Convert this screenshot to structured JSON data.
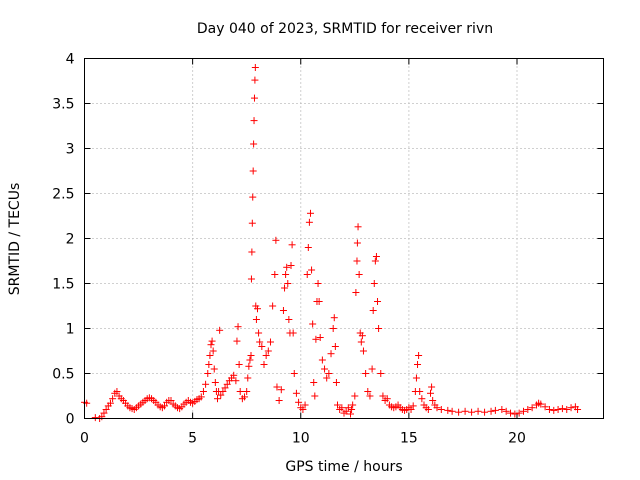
{
  "chart_data": {
    "type": "scatter",
    "title": "Day 040 of 2023, SRMTID for receiver rivn",
    "xlabel": "GPS time / hours",
    "ylabel": "SRMTID / TECUs",
    "xlim": [
      0,
      24
    ],
    "ylim": [
      0,
      4
    ],
    "x_ticks": [
      0,
      5,
      10,
      15,
      20
    ],
    "x_tick_labels": [
      "0",
      "5",
      "10",
      "15",
      "20"
    ],
    "y_ticks": [
      0,
      0.5,
      1,
      1.5,
      2,
      2.5,
      3,
      3.5,
      4
    ],
    "y_tick_labels": [
      "0",
      "0.5",
      "1",
      "1.5",
      "2",
      "2.5",
      "3",
      "3.5",
      "4"
    ],
    "grid": true,
    "marker": "+",
    "series": [
      {
        "name": "SRMTID",
        "color": "#ff0000",
        "points": [
          [
            0.0,
            0.18
          ],
          [
            0.1,
            0.17
          ],
          [
            0.5,
            0.01
          ],
          [
            0.7,
            0.0
          ],
          [
            0.8,
            0.02
          ],
          [
            0.9,
            0.06
          ],
          [
            1.0,
            0.1
          ],
          [
            1.1,
            0.14
          ],
          [
            1.2,
            0.17
          ],
          [
            1.3,
            0.22
          ],
          [
            1.4,
            0.28
          ],
          [
            1.5,
            0.3
          ],
          [
            1.6,
            0.25
          ],
          [
            1.7,
            0.22
          ],
          [
            1.8,
            0.2
          ],
          [
            1.9,
            0.17
          ],
          [
            2.0,
            0.14
          ],
          [
            2.1,
            0.12
          ],
          [
            2.2,
            0.11
          ],
          [
            2.3,
            0.1
          ],
          [
            2.4,
            0.12
          ],
          [
            2.5,
            0.14
          ],
          [
            2.6,
            0.16
          ],
          [
            2.7,
            0.18
          ],
          [
            2.8,
            0.2
          ],
          [
            2.9,
            0.22
          ],
          [
            3.0,
            0.23
          ],
          [
            3.1,
            0.22
          ],
          [
            3.2,
            0.2
          ],
          [
            3.3,
            0.18
          ],
          [
            3.4,
            0.15
          ],
          [
            3.5,
            0.13
          ],
          [
            3.6,
            0.12
          ],
          [
            3.7,
            0.14
          ],
          [
            3.8,
            0.18
          ],
          [
            3.9,
            0.2
          ],
          [
            4.0,
            0.2
          ],
          [
            4.1,
            0.16
          ],
          [
            4.2,
            0.14
          ],
          [
            4.3,
            0.12
          ],
          [
            4.4,
            0.11
          ],
          [
            4.5,
            0.13
          ],
          [
            4.6,
            0.16
          ],
          [
            4.7,
            0.18
          ],
          [
            4.8,
            0.2
          ],
          [
            4.9,
            0.18
          ],
          [
            5.0,
            0.17
          ],
          [
            5.1,
            0.19
          ],
          [
            5.2,
            0.21
          ],
          [
            5.3,
            0.22
          ],
          [
            5.4,
            0.24
          ],
          [
            5.5,
            0.3
          ],
          [
            5.6,
            0.38
          ],
          [
            5.7,
            0.5
          ],
          [
            5.75,
            0.6
          ],
          [
            5.8,
            0.7
          ],
          [
            5.85,
            0.82
          ],
          [
            5.9,
            0.86
          ],
          [
            5.95,
            0.75
          ],
          [
            6.0,
            0.55
          ],
          [
            6.05,
            0.4
          ],
          [
            6.1,
            0.3
          ],
          [
            6.15,
            0.22
          ],
          [
            6.2,
            0.3
          ],
          [
            6.25,
            0.98
          ],
          [
            6.3,
            0.26
          ],
          [
            6.4,
            0.3
          ],
          [
            6.5,
            0.34
          ],
          [
            6.6,
            0.38
          ],
          [
            6.7,
            0.42
          ],
          [
            6.8,
            0.45
          ],
          [
            6.9,
            0.48
          ],
          [
            7.0,
            0.42
          ],
          [
            7.05,
            0.86
          ],
          [
            7.1,
            1.02
          ],
          [
            7.15,
            0.6
          ],
          [
            7.2,
            0.3
          ],
          [
            7.3,
            0.22
          ],
          [
            7.4,
            0.24
          ],
          [
            7.5,
            0.3
          ],
          [
            7.55,
            0.45
          ],
          [
            7.6,
            0.58
          ],
          [
            7.65,
            0.65
          ],
          [
            7.7,
            0.7
          ],
          [
            7.72,
            1.55
          ],
          [
            7.74,
            1.85
          ],
          [
            7.76,
            2.17
          ],
          [
            7.78,
            2.46
          ],
          [
            7.8,
            2.75
          ],
          [
            7.82,
            3.05
          ],
          [
            7.84,
            3.31
          ],
          [
            7.86,
            3.56
          ],
          [
            7.88,
            3.76
          ],
          [
            7.9,
            3.9
          ],
          [
            7.92,
            1.25
          ],
          [
            7.95,
            1.1
          ],
          [
            8.0,
            1.22
          ],
          [
            8.05,
            0.95
          ],
          [
            8.1,
            0.85
          ],
          [
            8.2,
            0.8
          ],
          [
            8.3,
            0.6
          ],
          [
            8.4,
            0.7
          ],
          [
            8.5,
            0.75
          ],
          [
            8.6,
            0.85
          ],
          [
            8.7,
            1.25
          ],
          [
            8.8,
            1.6
          ],
          [
            8.85,
            1.98
          ],
          [
            8.9,
            0.35
          ],
          [
            9.0,
            0.2
          ],
          [
            9.1,
            0.32
          ],
          [
            9.2,
            1.2
          ],
          [
            9.25,
            1.45
          ],
          [
            9.3,
            1.6
          ],
          [
            9.35,
            1.68
          ],
          [
            9.4,
            1.5
          ],
          [
            9.45,
            1.1
          ],
          [
            9.5,
            0.95
          ],
          [
            9.55,
            1.7
          ],
          [
            9.6,
            1.93
          ],
          [
            9.65,
            0.95
          ],
          [
            9.7,
            0.5
          ],
          [
            9.8,
            0.28
          ],
          [
            9.9,
            0.18
          ],
          [
            10.0,
            0.12
          ],
          [
            10.1,
            0.1
          ],
          [
            10.2,
            0.15
          ],
          [
            10.3,
            1.6
          ],
          [
            10.35,
            1.9
          ],
          [
            10.4,
            2.18
          ],
          [
            10.45,
            2.28
          ],
          [
            10.5,
            1.65
          ],
          [
            10.55,
            1.05
          ],
          [
            10.6,
            0.4
          ],
          [
            10.65,
            0.25
          ],
          [
            10.7,
            0.88
          ],
          [
            10.75,
            1.3
          ],
          [
            10.8,
            1.5
          ],
          [
            10.85,
            1.3
          ],
          [
            10.9,
            0.9
          ],
          [
            11.0,
            0.65
          ],
          [
            11.1,
            0.55
          ],
          [
            11.2,
            0.45
          ],
          [
            11.3,
            0.5
          ],
          [
            11.4,
            0.72
          ],
          [
            11.5,
            1.0
          ],
          [
            11.55,
            1.12
          ],
          [
            11.6,
            0.8
          ],
          [
            11.65,
            0.4
          ],
          [
            11.7,
            0.15
          ],
          [
            11.8,
            0.1
          ],
          [
            11.9,
            0.12
          ],
          [
            12.0,
            0.06
          ],
          [
            12.1,
            0.08
          ],
          [
            12.2,
            0.12
          ],
          [
            12.3,
            0.05
          ],
          [
            12.35,
            0.1
          ],
          [
            12.4,
            0.15
          ],
          [
            12.5,
            0.25
          ],
          [
            12.55,
            1.4
          ],
          [
            12.6,
            1.75
          ],
          [
            12.62,
            1.95
          ],
          [
            12.65,
            2.13
          ],
          [
            12.7,
            1.6
          ],
          [
            12.75,
            0.95
          ],
          [
            12.8,
            0.85
          ],
          [
            12.85,
            0.92
          ],
          [
            12.9,
            0.75
          ],
          [
            13.0,
            0.5
          ],
          [
            13.1,
            0.3
          ],
          [
            13.2,
            0.25
          ],
          [
            13.3,
            0.55
          ],
          [
            13.35,
            1.2
          ],
          [
            13.4,
            1.5
          ],
          [
            13.45,
            1.75
          ],
          [
            13.5,
            1.8
          ],
          [
            13.55,
            1.3
          ],
          [
            13.6,
            1.0
          ],
          [
            13.7,
            0.5
          ],
          [
            13.8,
            0.25
          ],
          [
            13.9,
            0.2
          ],
          [
            14.0,
            0.22
          ],
          [
            14.1,
            0.15
          ],
          [
            14.2,
            0.13
          ],
          [
            14.3,
            0.12
          ],
          [
            14.4,
            0.13
          ],
          [
            14.5,
            0.15
          ],
          [
            14.6,
            0.12
          ],
          [
            14.7,
            0.1
          ],
          [
            14.8,
            0.09
          ],
          [
            14.9,
            0.1
          ],
          [
            15.0,
            0.12
          ],
          [
            15.1,
            0.1
          ],
          [
            15.2,
            0.14
          ],
          [
            15.3,
            0.3
          ],
          [
            15.35,
            0.45
          ],
          [
            15.4,
            0.6
          ],
          [
            15.45,
            0.7
          ],
          [
            15.5,
            0.3
          ],
          [
            15.6,
            0.22
          ],
          [
            15.7,
            0.15
          ],
          [
            15.8,
            0.12
          ],
          [
            15.9,
            0.1
          ],
          [
            16.0,
            0.28
          ],
          [
            16.05,
            0.35
          ],
          [
            16.1,
            0.2
          ],
          [
            16.2,
            0.15
          ],
          [
            16.3,
            0.12
          ],
          [
            16.5,
            0.1
          ],
          [
            16.8,
            0.09
          ],
          [
            17.0,
            0.08
          ],
          [
            17.3,
            0.07
          ],
          [
            17.6,
            0.08
          ],
          [
            17.9,
            0.07
          ],
          [
            18.2,
            0.08
          ],
          [
            18.5,
            0.07
          ],
          [
            18.8,
            0.08
          ],
          [
            19.0,
            0.09
          ],
          [
            19.3,
            0.1
          ],
          [
            19.5,
            0.08
          ],
          [
            19.7,
            0.06
          ],
          [
            19.9,
            0.05
          ],
          [
            20.1,
            0.06
          ],
          [
            20.3,
            0.08
          ],
          [
            20.5,
            0.1
          ],
          [
            20.7,
            0.12
          ],
          [
            20.9,
            0.15
          ],
          [
            21.0,
            0.17
          ],
          [
            21.1,
            0.16
          ],
          [
            21.3,
            0.13
          ],
          [
            21.5,
            0.1
          ],
          [
            21.7,
            0.09
          ],
          [
            21.9,
            0.1
          ],
          [
            22.1,
            0.11
          ],
          [
            22.3,
            0.1
          ],
          [
            22.5,
            0.12
          ],
          [
            22.7,
            0.13
          ],
          [
            22.8,
            0.1
          ]
        ]
      }
    ]
  }
}
